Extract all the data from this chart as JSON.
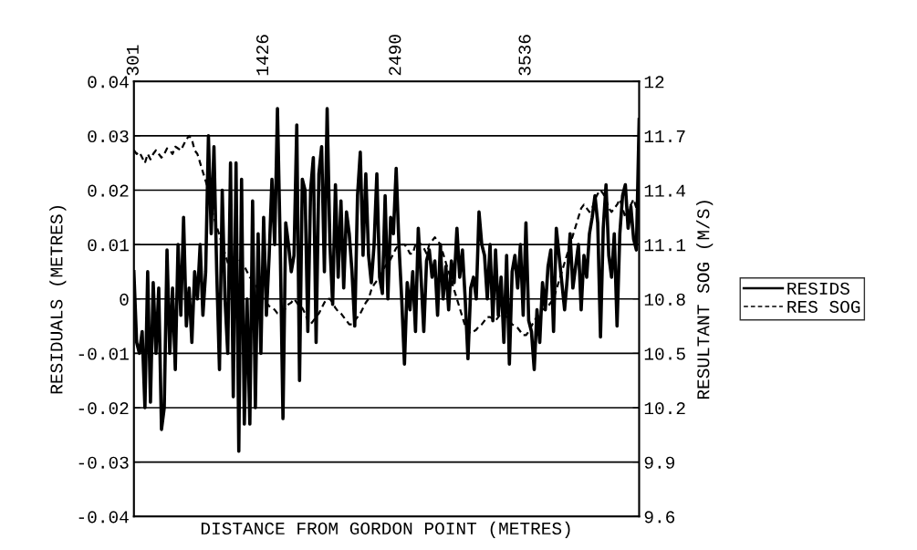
{
  "chart_data": {
    "type": "line",
    "xlabel": "DISTANCE FROM GORDON POINT (METRES)",
    "ylabel": "RESIDUALS (METRES)",
    "y2label": "RESULTANT SOG (M/S)",
    "categories": [
      "301",
      null,
      null,
      null,
      null,
      null,
      null,
      null,
      null,
      null,
      null,
      null,
      null,
      null,
      null,
      null,
      null,
      null,
      null,
      null,
      null,
      null,
      null,
      null,
      null,
      null,
      null,
      null,
      null,
      null,
      null,
      null,
      null,
      null,
      null,
      null,
      null,
      null,
      null,
      null,
      null,
      null,
      null,
      null,
      null,
      null,
      null,
      "1426",
      null,
      null,
      null,
      null,
      null,
      null,
      null,
      null,
      null,
      null,
      null,
      null,
      null,
      null,
      null,
      null,
      null,
      null,
      null,
      null,
      null,
      null,
      null,
      null,
      null,
      null,
      null,
      null,
      null,
      null,
      null,
      null,
      null,
      null,
      null,
      null,
      null,
      null,
      null,
      null,
      null,
      null,
      null,
      null,
      null,
      null,
      null,
      "2490",
      null,
      null,
      null,
      null,
      null,
      null,
      null,
      null,
      null,
      null,
      null,
      null,
      null,
      null,
      null,
      null,
      null,
      null,
      null,
      null,
      null,
      null,
      null,
      null,
      null,
      null,
      null,
      null,
      null,
      null,
      null,
      null,
      null,
      null,
      null,
      null,
      null,
      null,
      null,
      null,
      null,
      null,
      null,
      null,
      null,
      null,
      "3536",
      null,
      null,
      null,
      null,
      null,
      null,
      null,
      null,
      null,
      null,
      null,
      null,
      null,
      null,
      null,
      null,
      null,
      null,
      null,
      null,
      null,
      null,
      null,
      null,
      null,
      null,
      null,
      null,
      null,
      null,
      null,
      null,
      null,
      null,
      null,
      null,
      null,
      null,
      null,
      null,
      null
    ],
    "series": [
      {
        "name": "RESIDS",
        "color": "#000000",
        "line_style": "solid",
        "values": [
          0.005,
          -0.008,
          -0.01,
          -0.006,
          -0.02,
          0.005,
          -0.019,
          0.003,
          -0.01,
          0.002,
          -0.024,
          -0.02,
          0.009,
          -0.01,
          0.002,
          -0.013,
          0.01,
          -0.003,
          0.015,
          -0.005,
          0.002,
          -0.008,
          0.005,
          0.0,
          0.01,
          -0.003,
          0.005,
          0.03,
          0.012,
          0.028,
          0.005,
          -0.013,
          0.02,
          0.0,
          -0.01,
          0.025,
          -0.018,
          0.025,
          -0.028,
          0.022,
          -0.023,
          0.0,
          -0.023,
          0.018,
          -0.02,
          0.012,
          -0.01,
          0.015,
          -0.003,
          0.008,
          0.022,
          0.01,
          0.035,
          0.01,
          -0.022,
          0.014,
          0.01,
          0.005,
          0.008,
          0.032,
          -0.015,
          0.022,
          0.02,
          -0.006,
          0.02,
          0.026,
          -0.008,
          0.023,
          0.028,
          0.005,
          0.035,
          0.01,
          -0.001,
          0.021,
          0.004,
          0.018,
          0.002,
          0.016,
          0.012,
          0.005,
          -0.005,
          0.019,
          0.027,
          0.008,
          0.023,
          0.008,
          0.003,
          0.01,
          0.023,
          0.004,
          0.001,
          0.019,
          0.0,
          0.015,
          0.012,
          0.024,
          0.01,
          0.0,
          -0.012,
          0.003,
          -0.002,
          0.005,
          -0.006,
          0.013,
          0.004,
          -0.006,
          0.007,
          0.009,
          0.004,
          0.007,
          -0.003,
          0.01,
          0.0,
          0.006,
          -0.002,
          0.007,
          0.003,
          0.013,
          0.004,
          0.009,
          0.0,
          -0.011,
          0.002,
          0.004,
          0.0,
          0.016,
          0.01,
          0.008,
          0.0,
          0.01,
          -0.004,
          0.009,
          -0.003,
          0.004,
          -0.008,
          0.008,
          -0.012,
          0.005,
          0.008,
          0.002,
          0.01,
          -0.003,
          0.014,
          -0.004,
          -0.006,
          -0.013,
          -0.002,
          -0.008,
          0.003,
          -0.002,
          0.006,
          0.009,
          -0.006,
          0.013,
          0.008,
          0.003,
          -0.002,
          0.004,
          0.012,
          0.002,
          0.006,
          0.01,
          -0.002,
          0.008,
          0.004,
          0.012,
          0.015,
          0.019,
          0.014,
          -0.007,
          0.013,
          0.021,
          0.008,
          0.004,
          0.012,
          -0.005,
          0.012,
          0.019,
          0.021,
          0.013,
          0.017,
          0.011,
          0.009,
          0.033
        ]
      },
      {
        "name": "RES SOG",
        "color": "#000000",
        "line_style": "dashed",
        "axis": "y2",
        "values": [
          11.62,
          11.6,
          11.61,
          11.58,
          11.55,
          11.6,
          11.57,
          11.6,
          11.62,
          11.6,
          11.58,
          11.6,
          11.63,
          11.62,
          11.6,
          11.64,
          11.63,
          11.62,
          11.65,
          11.68,
          11.7,
          11.68,
          11.62,
          11.6,
          11.55,
          11.5,
          11.45,
          11.4,
          11.3,
          11.25,
          11.2,
          11.15,
          11.1,
          11.05,
          11.0,
          10.95,
          11.0,
          11.05,
          11.02,
          11.0,
          10.98,
          10.95,
          10.92,
          10.9,
          10.88,
          10.85,
          10.82,
          10.8,
          10.78,
          10.76,
          10.75,
          10.74,
          10.72,
          10.72,
          10.73,
          10.75,
          10.77,
          10.78,
          10.8,
          10.78,
          10.76,
          10.75,
          10.72,
          10.68,
          10.66,
          10.68,
          10.7,
          10.72,
          10.75,
          10.78,
          10.8,
          10.8,
          10.78,
          10.75,
          10.73,
          10.72,
          10.7,
          10.68,
          10.66,
          10.66,
          10.68,
          10.7,
          10.72,
          10.75,
          10.78,
          10.8,
          10.85,
          10.88,
          10.9,
          10.92,
          10.95,
          10.98,
          11.0,
          11.02,
          11.05,
          11.08,
          11.1,
          11.1,
          11.1,
          11.08,
          11.05,
          11.05,
          11.1,
          11.12,
          11.1,
          11.08,
          11.05,
          11.1,
          11.12,
          11.14,
          11.12,
          11.1,
          11.05,
          11.0,
          10.95,
          10.9,
          10.85,
          10.8,
          10.75,
          10.7,
          10.65,
          10.62,
          10.61,
          10.62,
          10.63,
          10.65,
          10.66,
          10.68,
          10.7,
          10.7,
          10.69,
          10.68,
          10.7,
          10.72,
          10.72,
          10.7,
          10.68,
          10.66,
          10.65,
          10.64,
          10.62,
          10.6,
          10.6,
          10.62,
          10.65,
          10.68,
          10.7,
          10.72,
          10.74,
          10.75,
          10.76,
          10.78,
          10.8,
          10.85,
          10.9,
          10.95,
          11.0,
          11.05,
          11.1,
          11.15,
          11.2,
          11.25,
          11.3,
          11.32,
          11.3,
          11.28,
          11.3,
          11.35,
          11.38,
          11.4,
          11.38,
          11.35,
          11.3,
          11.28,
          11.3,
          11.32,
          11.35,
          11.3,
          11.25,
          11.3,
          11.32,
          11.35,
          11.3,
          11.28
        ]
      }
    ],
    "ylim": [
      -0.04,
      0.04
    ],
    "yticks": [
      -0.04,
      -0.03,
      -0.02,
      -0.01,
      0,
      0.01,
      0.02,
      0.03,
      0.04
    ],
    "y2lim": [
      9.6,
      12
    ],
    "y2ticks": [
      9.6,
      9.9,
      10.2,
      10.5,
      10.8,
      11.1,
      11.4,
      11.7,
      12
    ],
    "grid": "y",
    "legend": "right",
    "marker": "none"
  }
}
